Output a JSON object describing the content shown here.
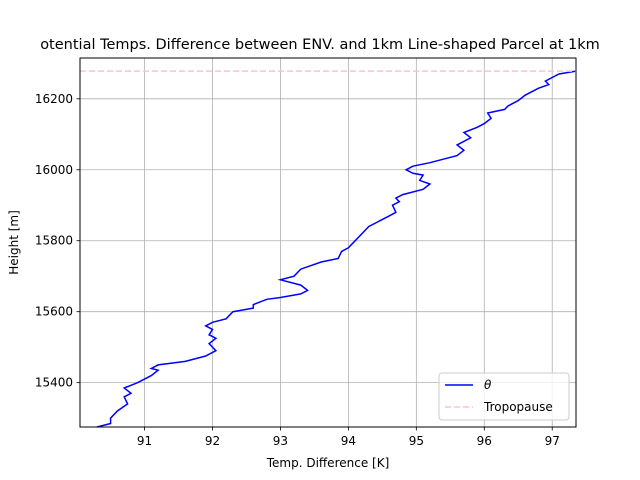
{
  "chart_data": {
    "type": "line",
    "title": "otential Temps. Difference between ENV. and 1km Line-shaped Parcel at 1km",
    "xlabel": "Temp. Difference [K]",
    "ylabel": "Height [m]",
    "xlim": [
      90.05,
      97.35
    ],
    "ylim": [
      15275,
      16315
    ],
    "xticks": [
      91,
      92,
      93,
      94,
      95,
      96,
      97
    ],
    "yticks": [
      15400,
      15600,
      15800,
      16000,
      16200
    ],
    "xtick_labels": [
      "91",
      "92",
      "93",
      "94",
      "95",
      "96",
      "97"
    ],
    "ytick_labels": [
      "15400",
      "15600",
      "15800",
      "16000",
      "16200"
    ],
    "grid": true,
    "legend_position": "lower-right",
    "series": [
      {
        "name": "θ",
        "color": "#0000ff",
        "x": [
          90.3,
          90.5,
          90.5,
          90.6,
          90.75,
          90.7,
          90.8,
          90.7,
          90.9,
          91.0,
          91.1,
          91.2,
          91.1,
          91.2,
          91.6,
          91.9,
          92.05,
          91.95,
          92.05,
          91.95,
          92.0,
          91.9,
          92.0,
          92.2,
          92.3,
          92.6,
          92.6,
          92.8,
          93.0,
          93.3,
          93.4,
          93.3,
          93.0,
          93.2,
          93.3,
          93.6,
          93.85,
          93.9,
          94.0,
          94.1,
          94.2,
          94.3,
          94.4,
          94.5,
          94.6,
          94.7,
          94.65,
          94.75,
          94.7,
          94.8,
          95.1,
          95.2,
          95.05,
          95.1,
          94.95,
          94.85,
          94.95,
          95.2,
          95.6,
          95.7,
          95.6,
          95.8,
          95.7,
          95.9,
          96.0,
          96.1,
          96.05,
          96.3,
          96.35,
          96.5,
          96.6,
          96.7,
          96.8,
          96.95,
          96.9,
          97.0,
          97.1,
          97.35
        ],
        "y": [
          15275,
          15285,
          15300,
          15320,
          15340,
          15360,
          15370,
          15385,
          15400,
          15410,
          15420,
          15435,
          15440,
          15450,
          15460,
          15475,
          15490,
          15510,
          15525,
          15535,
          15550,
          15560,
          15570,
          15580,
          15600,
          15610,
          15620,
          15635,
          15640,
          15650,
          15660,
          15675,
          15690,
          15700,
          15720,
          15740,
          15750,
          15770,
          15780,
          15800,
          15820,
          15840,
          15850,
          15860,
          15870,
          15880,
          15900,
          15910,
          15920,
          15930,
          15945,
          15960,
          15970,
          15985,
          15990,
          16000,
          16010,
          16020,
          16040,
          16055,
          16070,
          16090,
          16105,
          16120,
          16130,
          16145,
          16160,
          16170,
          16180,
          16195,
          16210,
          16220,
          16230,
          16240,
          16250,
          16260,
          16270,
          16278
        ]
      },
      {
        "name": "Tropopause",
        "color": "#ffc0cb",
        "style": "dashed",
        "x": [
          90.05,
          97.35
        ],
        "y": [
          16278,
          16278
        ]
      }
    ]
  }
}
